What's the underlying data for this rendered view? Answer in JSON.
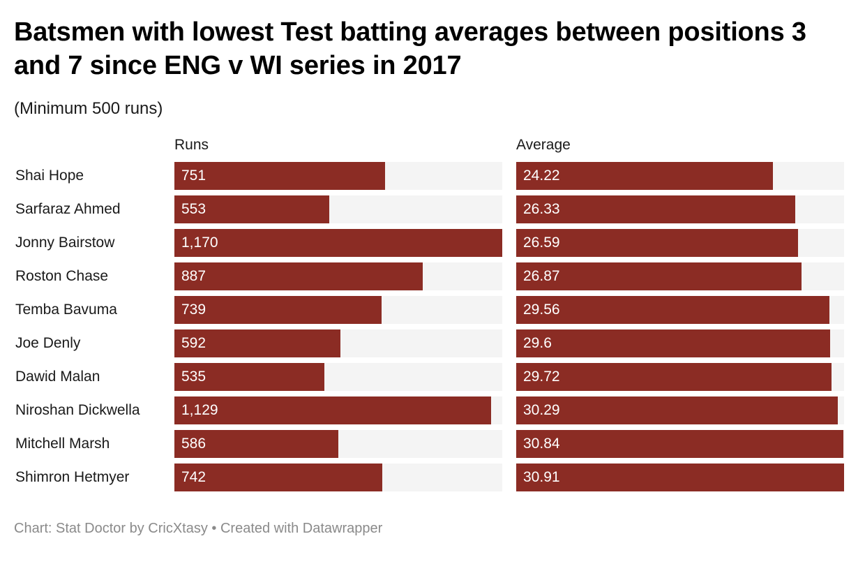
{
  "title": "Batsmen with lowest Test batting averages between positions 3 and 7 since ENG v WI series in 2017",
  "subtitle": "(Minimum 500 runs)",
  "footer": "Chart: Stat Doctor by CricXtasy • Created with Datawrapper",
  "colors": {
    "bar": "#8b2c24",
    "track": "#f4f4f4",
    "value_text": "#ffffff",
    "footer_text": "#8a8a8a"
  },
  "chart_data": {
    "type": "bar",
    "orientation": "horizontal",
    "categories": [
      "Shai Hope",
      "Sarfaraz Ahmed",
      "Jonny Bairstow",
      "Roston Chase",
      "Temba Bavuma",
      "Joe Denly",
      "Dawid Malan",
      "Niroshan Dickwella",
      "Mitchell Marsh",
      "Shimron Hetmyer"
    ],
    "series": [
      {
        "name": "Runs",
        "values": [
          751,
          553,
          1170,
          887,
          739,
          592,
          535,
          1129,
          586,
          742
        ],
        "labels": [
          "751",
          "553",
          "1,170",
          "887",
          "739",
          "592",
          "535",
          "1,129",
          "586",
          "742"
        ],
        "xlim": [
          0,
          1170
        ]
      },
      {
        "name": "Average",
        "values": [
          24.22,
          26.33,
          26.59,
          26.87,
          29.56,
          29.6,
          29.72,
          30.29,
          30.84,
          30.91
        ],
        "labels": [
          "24.22",
          "26.33",
          "26.59",
          "26.87",
          "29.56",
          "29.6",
          "29.72",
          "30.29",
          "30.84",
          "30.91"
        ],
        "xlim": [
          0,
          30.91
        ]
      }
    ],
    "legend": "none",
    "grid": false
  }
}
